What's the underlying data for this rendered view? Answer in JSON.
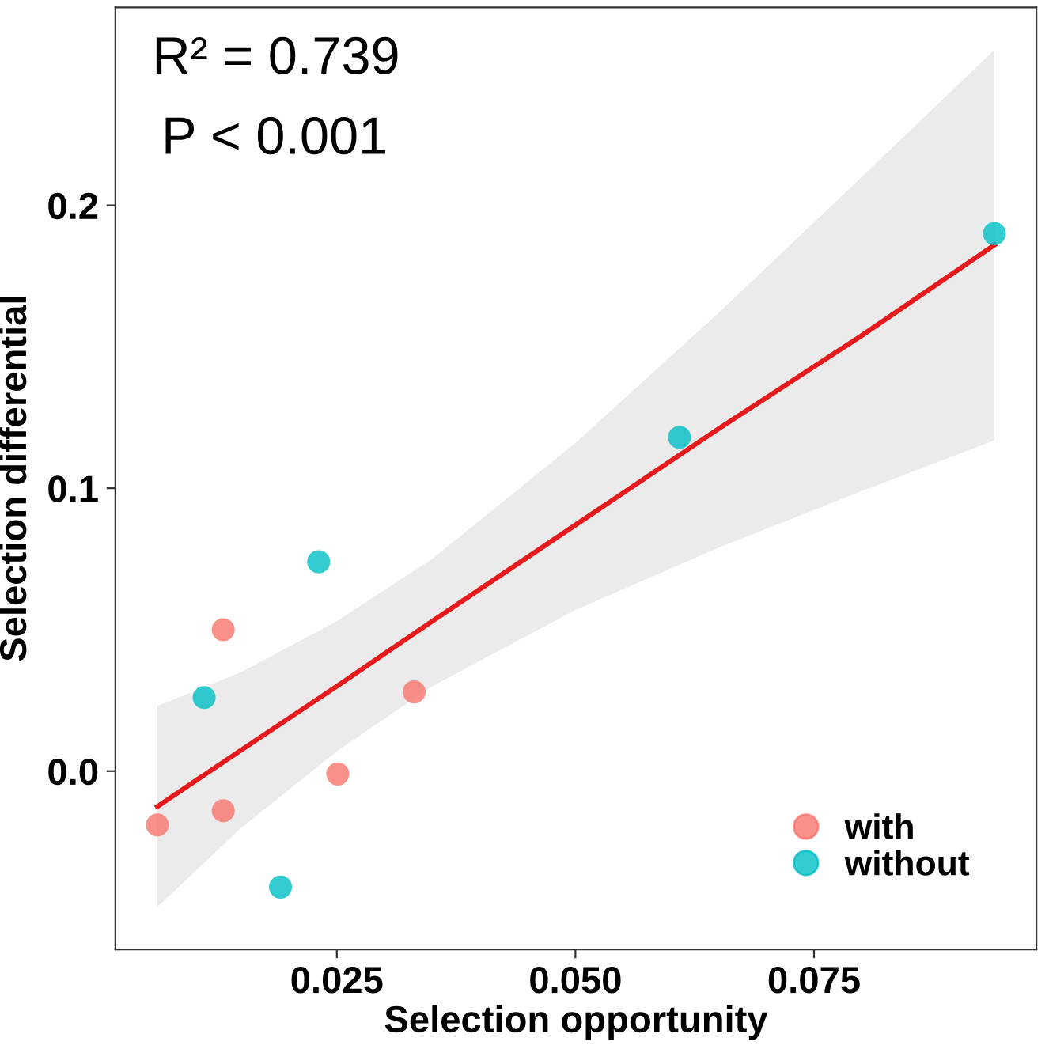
{
  "chart_data": {
    "type": "scatter",
    "xlabel": "Selection opportunity",
    "ylabel": "Selection differential",
    "annotations": [
      "R² = 0.739",
      "P < 0.001"
    ],
    "xlim": [
      0.0018,
      0.0983
    ],
    "ylim": [
      -0.063,
      0.27
    ],
    "xticks": [
      0.025,
      {
        "value": 0.05,
        "label": "0.050"
      },
      0.075
    ],
    "yticks": [
      {
        "value": 0,
        "label": "0.0"
      },
      0.1,
      0.2
    ],
    "grid": false,
    "legend": "bottom right",
    "marker": "circle",
    "series": [
      {
        "name": "with",
        "color": "#f8766d",
        "x": [
          0.0062,
          0.0131,
          0.0131,
          0.0251,
          0.0331
        ],
        "values": [
          -0.019,
          0.05,
          -0.014,
          -0.001,
          0.028
        ]
      },
      {
        "name": "without",
        "color": "#00bfc4",
        "x": [
          0.0111,
          0.0191,
          0.0231,
          0.0609,
          0.0939
        ],
        "values": [
          0.026,
          -0.041,
          0.074,
          0.118,
          0.19
        ]
      },
      {
        "type": "line",
        "marker": "none",
        "color": "#e41a1c",
        "x": [
          0.0062,
          0.015,
          0.025,
          0.035,
          0.05,
          0.065,
          0.08,
          0.0939
        ],
        "values": [
          -0.0125,
          0.0075,
          0.03,
          0.053,
          0.087,
          0.121,
          0.154,
          0.186
        ],
        "lower": [
          -0.048,
          -0.02,
          0.007,
          0.03,
          0.057,
          0.079,
          0.099,
          0.117
        ],
        "upper": [
          0.023,
          0.035,
          0.053,
          0.075,
          0.116,
          0.162,
          0.21,
          0.255
        ]
      }
    ]
  }
}
